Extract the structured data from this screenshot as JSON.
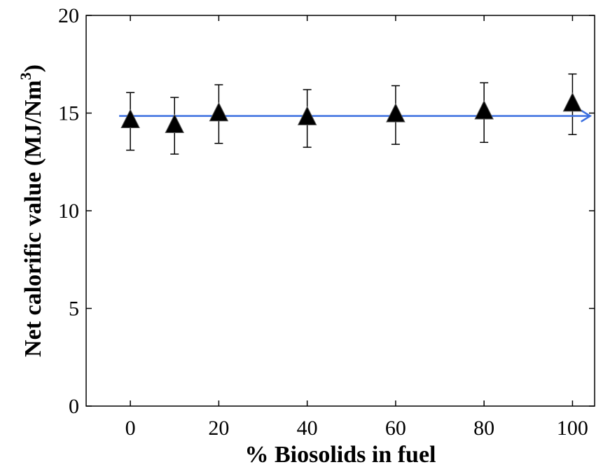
{
  "chart_data": {
    "type": "scatter",
    "title": "",
    "xlabel": "% Biosolids in fuel",
    "ylabel": "Net calorific value (MJ/Nm",
    "ylabel_sup": "3",
    "ylabel_suffix": ")",
    "xlim": [
      -10,
      105
    ],
    "ylim": [
      0,
      20
    ],
    "xticks": [
      0,
      20,
      40,
      60,
      80,
      100
    ],
    "yticks": [
      0,
      5,
      10,
      15,
      20
    ],
    "grid": false,
    "series": [
      {
        "marker": "triangle",
        "color": "#000000",
        "x": [
          0,
          10,
          20,
          40,
          60,
          80,
          100
        ],
        "y": [
          14.6,
          14.35,
          14.95,
          14.75,
          14.9,
          15.05,
          15.45
        ],
        "error_low": [
          13.1,
          12.9,
          13.45,
          13.25,
          13.4,
          13.5,
          13.9
        ],
        "error_high": [
          16.05,
          15.8,
          16.45,
          16.2,
          16.4,
          16.55,
          17.0
        ]
      }
    ],
    "reference_line": {
      "y": 14.85,
      "x_start": 0,
      "x_end": 104,
      "color": "#3b6fe0",
      "arrow": true
    }
  }
}
